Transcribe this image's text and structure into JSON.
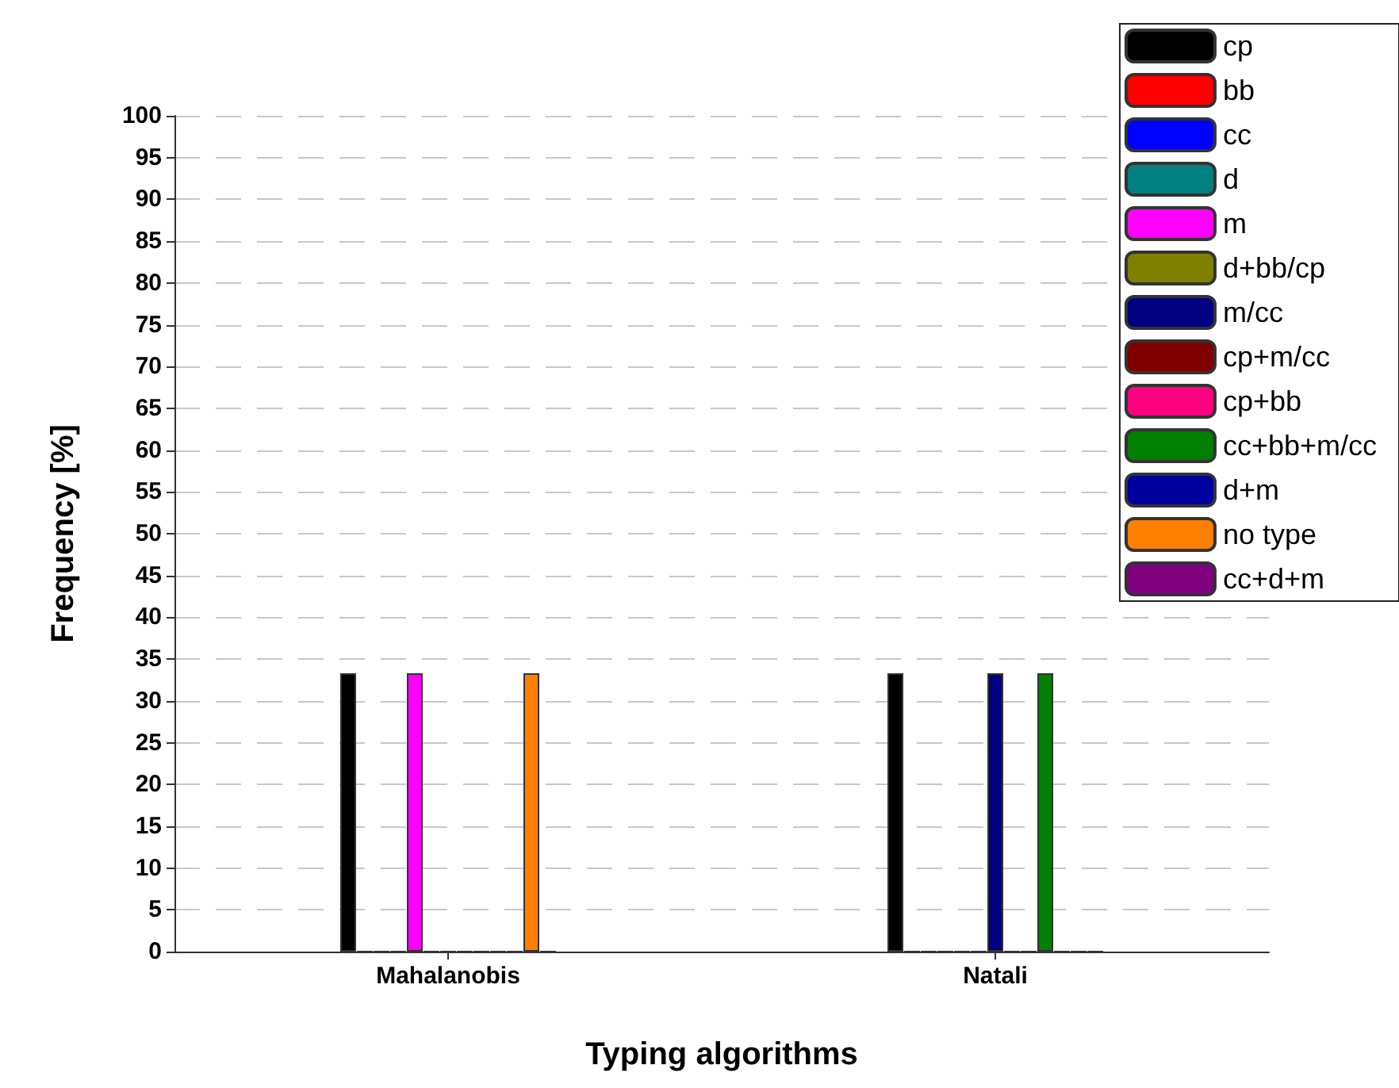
{
  "chart_data": {
    "type": "bar",
    "xlabel": "Typing algorithms",
    "ylabel": "Frequency [%]",
    "categories": [
      "Mahalanobis",
      "Natali"
    ],
    "ylim": [
      0,
      100
    ],
    "yticks": [
      0,
      5,
      10,
      15,
      20,
      25,
      30,
      35,
      40,
      45,
      50,
      55,
      60,
      65,
      70,
      75,
      80,
      85,
      90,
      95,
      100
    ],
    "grid": "y",
    "legend": "top right",
    "series": [
      {
        "name": "cp",
        "color": "#000000",
        "values": [
          33.3,
          33.3
        ]
      },
      {
        "name": "bb",
        "color": "#ff0000",
        "values": [
          0,
          0
        ]
      },
      {
        "name": "cc",
        "color": "#0000ff",
        "values": [
          0,
          0
        ]
      },
      {
        "name": "d",
        "color": "#008080",
        "values": [
          0,
          0
        ]
      },
      {
        "name": "m",
        "color": "#ff00ff",
        "values": [
          33.3,
          0
        ]
      },
      {
        "name": "d+bb/cp",
        "color": "#808000",
        "values": [
          0,
          0
        ]
      },
      {
        "name": "m/cc",
        "color": "#000080",
        "values": [
          0,
          33.3
        ]
      },
      {
        "name": "cp+m/cc",
        "color": "#800000",
        "values": [
          0,
          0
        ]
      },
      {
        "name": "cp+bb",
        "color": "#ff0080",
        "values": [
          0,
          0
        ]
      },
      {
        "name": "cc+bb+m/cc",
        "color": "#008000",
        "values": [
          0,
          33.3
        ]
      },
      {
        "name": "d+m",
        "color": "#0000a0",
        "values": [
          0,
          0
        ]
      },
      {
        "name": "no type",
        "color": "#ff8000",
        "values": [
          33.3,
          0
        ]
      },
      {
        "name": "cc+d+m",
        "color": "#800080",
        "values": [
          0,
          0
        ]
      }
    ]
  }
}
